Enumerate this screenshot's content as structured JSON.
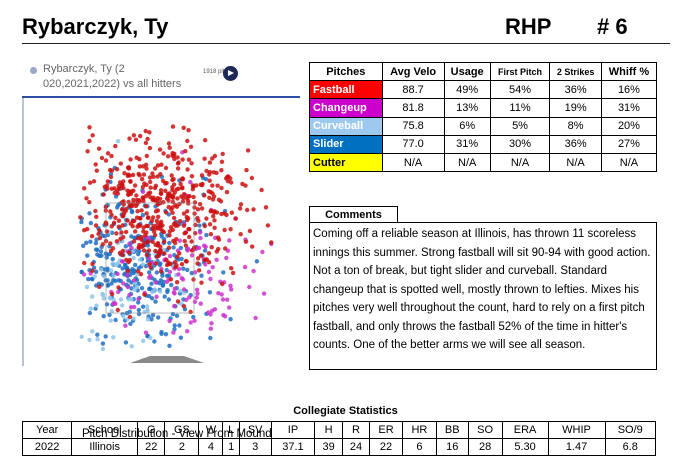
{
  "header": {
    "name": "Rybarczyk, Ty",
    "position": "RHP",
    "jersey": "# 6"
  },
  "plot": {
    "title": "Rybarczyk, Ty (2 020,2021,2022) vs all hitters",
    "pitch_count": "1918 pitches",
    "caption": "Pitch Distribution - View From Mound"
  },
  "pitch_table": {
    "headers": [
      "Pitches",
      "Avg Velo",
      "Usage",
      "First Pitch",
      "2 Strikes",
      "Whiff %"
    ],
    "rows": [
      {
        "name": "Fastball",
        "color": "#ff0000",
        "text_color": "#ffffff",
        "values": [
          "88.7",
          "49%",
          "54%",
          "36%",
          "16%"
        ]
      },
      {
        "name": "Changeup",
        "color": "#cc00cc",
        "text_color": "#ffffff",
        "values": [
          "81.8",
          "13%",
          "11%",
          "19%",
          "31%"
        ]
      },
      {
        "name": "Curveball",
        "color": "#9ec9ee",
        "text_color": "#ffffff",
        "values": [
          "75.8",
          "6%",
          "5%",
          "8%",
          "20%"
        ]
      },
      {
        "name": "Slider",
        "color": "#0070c0",
        "text_color": "#ffffff",
        "values": [
          "77.0",
          "31%",
          "30%",
          "36%",
          "27%"
        ]
      },
      {
        "name": "Cutter",
        "color": "#ffff00",
        "text_color": "#000000",
        "values": [
          "N/A",
          "N/A",
          "N/A",
          "N/A",
          "N/A"
        ]
      }
    ]
  },
  "comments": {
    "title": "Comments",
    "text": "Coming off a reliable season at Illinois, has thrown 11 scoreless innings this summer. Strong fastball will sit 90-94 with good action. Not a ton of break, but tight slider and curveball. Standard changeup that is spotted well, mostly thrown to lefties. Mixes his pitches very well throughout the count, hard to rely on a first pitch fastball, and only throws the fastball 52% of the time in hitter's counts. One of the better arms we will see all season."
  },
  "stats": {
    "title": "Collegiate Statistics",
    "headers": [
      "Year",
      "School",
      "G",
      "GS",
      "W",
      "L",
      "SV",
      "IP",
      "H",
      "R",
      "ER",
      "HR",
      "BB",
      "SO",
      "ERA",
      "WHIP",
      "SO/9"
    ],
    "row": [
      "2022",
      "Illinois",
      "22",
      "2",
      "4",
      "1",
      "3",
      "37.1",
      "39",
      "24",
      "22",
      "6",
      "16",
      "28",
      "5.30",
      "1.47",
      "6.8"
    ]
  },
  "colors": {
    "fastball": "#cc1111",
    "changeup": "#cc33cc",
    "curveball": "#8ec4ea",
    "slider": "#1f6fc2",
    "accent_border": "#2b4fa5"
  }
}
